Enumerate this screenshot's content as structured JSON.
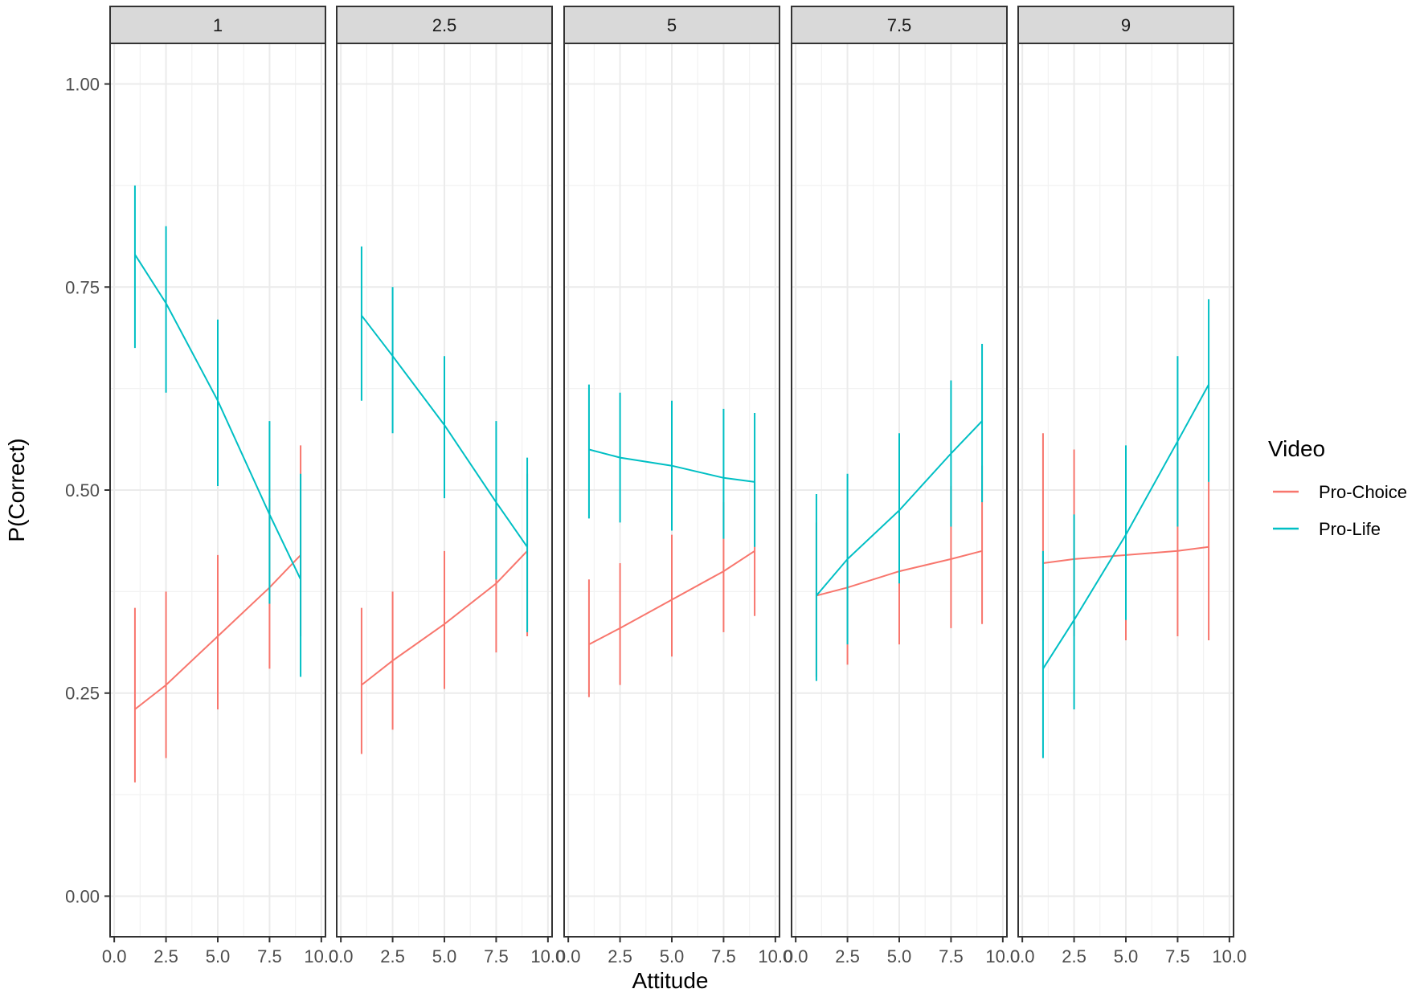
{
  "chart_data": {
    "type": "line",
    "facet_labels": [
      "1",
      "2.5",
      "5",
      "7.5",
      "9"
    ],
    "xlabel": "Attitude",
    "ylabel": "P(Correct)",
    "xlim": [
      -0.2,
      10.2
    ],
    "ylim": [
      -0.05,
      1.05
    ],
    "x_ticks": [
      "0.0",
      "2.5",
      "5.0",
      "7.5",
      "10.0"
    ],
    "y_ticks": [
      "0.00",
      "0.25",
      "0.50",
      "0.75",
      "1.00"
    ],
    "grid": true,
    "legend": {
      "title": "Video",
      "position": "right",
      "entries": [
        "Pro-Choice",
        "Pro-Life"
      ]
    },
    "colors": {
      "Pro-Choice": "#F8766D",
      "Pro-Life": "#00BFC4"
    },
    "facets": [
      {
        "label": "1",
        "series": [
          {
            "name": "Pro-Choice",
            "x": [
              1,
              2.5,
              5,
              7.5,
              9
            ],
            "y": [
              0.23,
              0.26,
              0.32,
              0.38,
              0.42
            ],
            "lower": [
              0.14,
              0.17,
              0.23,
              0.28,
              0.32
            ],
            "upper": [
              0.355,
              0.375,
              0.42,
              0.49,
              0.555
            ]
          },
          {
            "name": "Pro-Life",
            "x": [
              1,
              2.5,
              5,
              7.5,
              9
            ],
            "y": [
              0.79,
              0.73,
              0.61,
              0.47,
              0.39
            ],
            "lower": [
              0.675,
              0.62,
              0.505,
              0.36,
              0.27
            ],
            "upper": [
              0.875,
              0.825,
              0.71,
              0.585,
              0.52
            ]
          }
        ]
      },
      {
        "label": "2.5",
        "series": [
          {
            "name": "Pro-Choice",
            "x": [
              1,
              2.5,
              5,
              7.5,
              9
            ],
            "y": [
              0.26,
              0.29,
              0.335,
              0.385,
              0.425
            ],
            "lower": [
              0.175,
              0.205,
              0.255,
              0.3,
              0.32
            ],
            "upper": [
              0.355,
              0.375,
              0.425,
              0.48,
              0.52
            ]
          },
          {
            "name": "Pro-Life",
            "x": [
              1,
              2.5,
              5,
              7.5,
              9
            ],
            "y": [
              0.715,
              0.665,
              0.58,
              0.485,
              0.43
            ],
            "lower": [
              0.61,
              0.57,
              0.49,
              0.39,
              0.325
            ],
            "upper": [
              0.8,
              0.75,
              0.665,
              0.585,
              0.54
            ]
          }
        ]
      },
      {
        "label": "5",
        "series": [
          {
            "name": "Pro-Choice",
            "x": [
              1,
              2.5,
              5,
              7.5,
              9
            ],
            "y": [
              0.31,
              0.33,
              0.365,
              0.4,
              0.425
            ],
            "lower": [
              0.245,
              0.26,
              0.295,
              0.325,
              0.345
            ],
            "upper": [
              0.39,
              0.41,
              0.445,
              0.485,
              0.51
            ]
          },
          {
            "name": "Pro-Life",
            "x": [
              1,
              2.5,
              5,
              7.5,
              9
            ],
            "y": [
              0.55,
              0.54,
              0.53,
              0.515,
              0.51
            ],
            "lower": [
              0.465,
              0.46,
              0.45,
              0.44,
              0.43
            ],
            "upper": [
              0.63,
              0.62,
              0.61,
              0.6,
              0.595
            ]
          }
        ]
      },
      {
        "label": "7.5",
        "series": [
          {
            "name": "Pro-Choice",
            "x": [
              1,
              2.5,
              5,
              7.5,
              9
            ],
            "y": [
              0.37,
              0.38,
              0.4,
              0.415,
              0.425
            ],
            "lower": [
              0.27,
              0.285,
              0.31,
              0.33,
              0.335
            ],
            "upper": [
              0.46,
              0.475,
              0.49,
              0.505,
              0.53
            ]
          },
          {
            "name": "Pro-Life",
            "x": [
              1,
              2.5,
              5,
              7.5,
              9
            ],
            "y": [
              0.37,
              0.415,
              0.475,
              0.545,
              0.585
            ],
            "lower": [
              0.265,
              0.31,
              0.385,
              0.455,
              0.485
            ],
            "upper": [
              0.495,
              0.52,
              0.57,
              0.635,
              0.68
            ]
          }
        ]
      },
      {
        "label": "9",
        "series": [
          {
            "name": "Pro-Choice",
            "x": [
              1,
              2.5,
              5,
              7.5,
              9
            ],
            "y": [
              0.41,
              0.415,
              0.42,
              0.425,
              0.43
            ],
            "lower": [
              0.315,
              0.32,
              0.315,
              0.32,
              0.315
            ],
            "upper": [
              0.57,
              0.55,
              0.545,
              0.545,
              0.51
            ]
          },
          {
            "name": "Pro-Life",
            "x": [
              1,
              2.5,
              5,
              7.5,
              9
            ],
            "y": [
              0.28,
              0.34,
              0.445,
              0.56,
              0.63
            ],
            "lower": [
              0.17,
              0.23,
              0.34,
              0.455,
              0.51
            ],
            "upper": [
              0.425,
              0.47,
              0.555,
              0.665,
              0.735
            ]
          }
        ]
      }
    ]
  }
}
